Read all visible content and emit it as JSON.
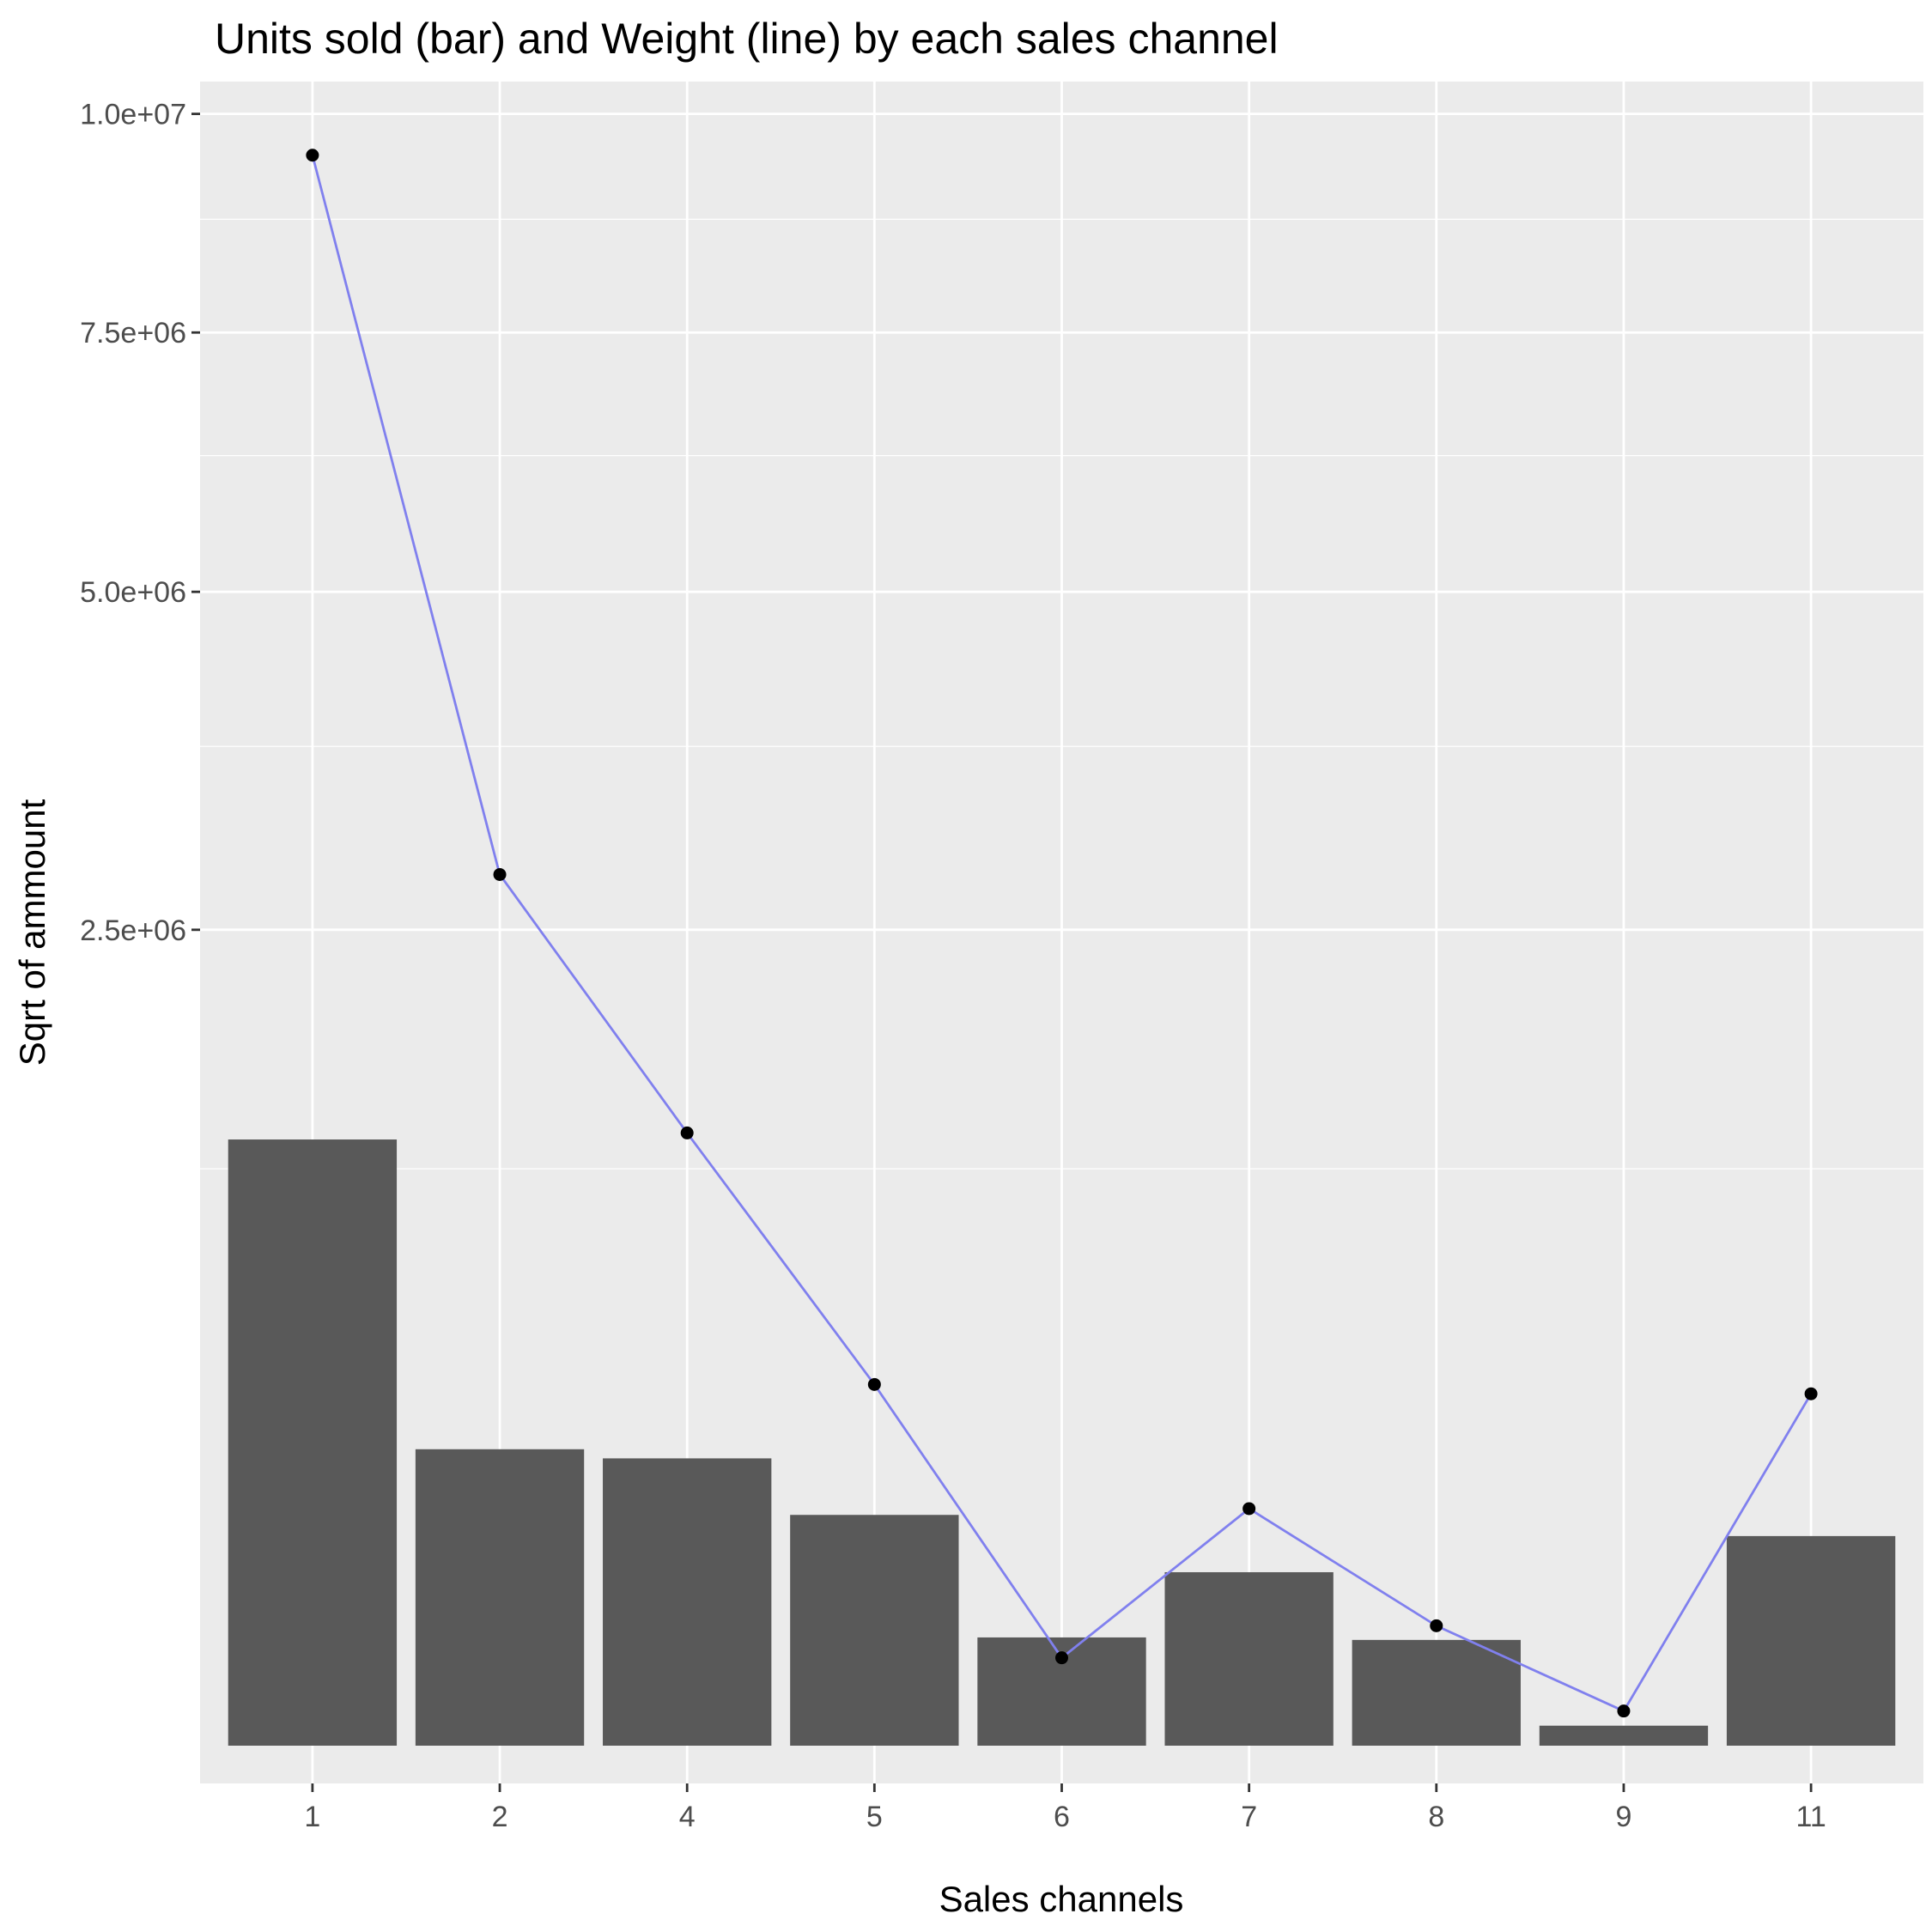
{
  "chart_data": {
    "type": "bar",
    "title": "Units sold (bar) and Weight (line) by each sales channel",
    "xlabel": "Sales channels",
    "ylabel": "Sqrt of ammount",
    "y_scale": "sqrt",
    "ylim": [
      0,
      10400000
    ],
    "y_ticks": [
      2500000,
      5000000,
      7500000,
      10000000
    ],
    "y_tick_labels": [
      "2.5e+06",
      "5.0e+06",
      "7.5e+06",
      "1.0e+07"
    ],
    "categories": [
      "1",
      "2",
      "4",
      "5",
      "6",
      "7",
      "8",
      "9",
      "11"
    ],
    "grid": true,
    "legend": "none",
    "series": [
      {
        "kind": "bar",
        "color": "#595959",
        "values": [
          1380000,
          330000,
          310000,
          200000,
          44000,
          113000,
          42000,
          1500,
          165000
        ]
      },
      {
        "kind": "line",
        "color": "#8080ee",
        "point_color": "#000000",
        "values": [
          9500000,
          2850000,
          1410000,
          490000,
          29000,
          211000,
          54000,
          4500,
          465000
        ]
      }
    ],
    "colors": {
      "panel": "#ebebeb",
      "grid_major": "#ffffff",
      "axis_text": "#4d4d4d"
    }
  }
}
